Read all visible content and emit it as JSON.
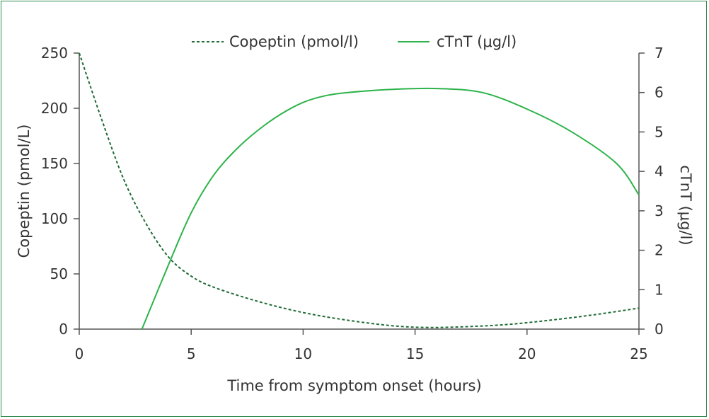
{
  "chart_data": {
    "type": "line",
    "xlabel": "Time from symptom onset (hours)",
    "ylabel_left": "Copeptin (pmol/L)",
    "ylabel_right": "cTnT (μg/l)",
    "xlim": [
      0,
      25
    ],
    "ylim_left": [
      0,
      250
    ],
    "ylim_right": [
      0,
      7
    ],
    "x_ticks": [
      "0",
      "5",
      "10",
      "15",
      "20",
      "25"
    ],
    "y_left_ticks": [
      "0",
      "50",
      "100",
      "150",
      "200",
      "250"
    ],
    "y_right_ticks": [
      "0",
      "1",
      "2",
      "3",
      "4",
      "5",
      "6",
      "7"
    ],
    "grid": false,
    "legend_position": "top",
    "series": [
      {
        "name": "Copeptin (pmol/l)",
        "axis": "left",
        "style": "dashed",
        "color": "#1f6b35",
        "x": [
          0,
          1,
          2,
          3,
          4,
          5,
          6,
          8,
          10,
          12,
          14,
          15.5,
          17,
          19,
          21,
          23,
          25
        ],
        "y": [
          250,
          190,
          135,
          95,
          65,
          48,
          38,
          25,
          15,
          8,
          3,
          1.5,
          2,
          4,
          8,
          13,
          19
        ]
      },
      {
        "name": "cTnT (μg/l)",
        "axis": "right",
        "style": "solid",
        "color": "#2db34a",
        "x": [
          2.8,
          4,
          5,
          6,
          7,
          8,
          9,
          10,
          11,
          12,
          14,
          16,
          18,
          20,
          22,
          24,
          25
        ],
        "y": [
          0,
          1.65,
          2.95,
          3.9,
          4.55,
          5.05,
          5.45,
          5.75,
          5.92,
          6.0,
          6.08,
          6.1,
          6.0,
          5.58,
          5.0,
          4.2,
          3.4
        ]
      }
    ]
  }
}
